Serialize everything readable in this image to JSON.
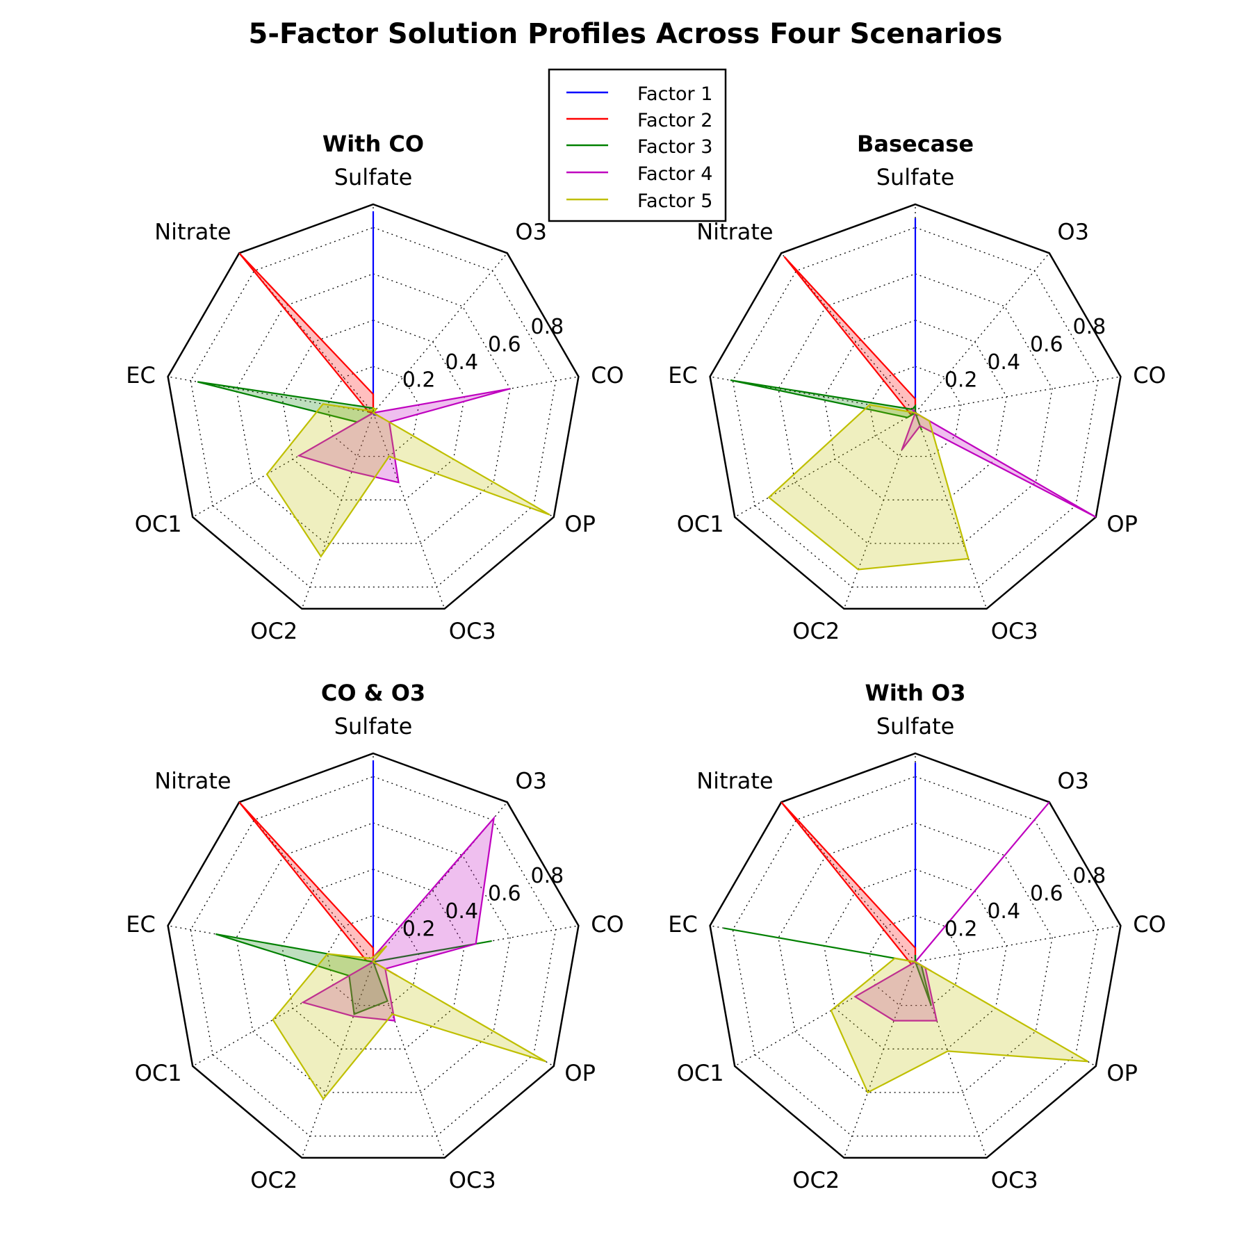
{
  "figure_title": "5-Factor Solution Profiles Across Four Scenarios",
  "legend": [
    {
      "name": "Factor 1",
      "color": "#0000ff"
    },
    {
      "name": "Factor 2",
      "color": "#ff0000"
    },
    {
      "name": "Factor 3",
      "color": "#008000"
    },
    {
      "name": "Factor 4",
      "color": "#bf00bf"
    },
    {
      "name": "Factor 5",
      "color": "#bfbf00"
    }
  ],
  "legend_placement": "top-center",
  "chart_data": [
    {
      "type": "radar",
      "title": "With CO",
      "categories": [
        "Sulfate",
        "O3",
        "CO",
        "OP",
        "OC3",
        "OC2",
        "OC1",
        "EC",
        "Nitrate"
      ],
      "radial_ticks": [
        "0.2",
        "0.4",
        "0.6",
        "0.8"
      ],
      "rlim": [
        0,
        0.9
      ],
      "grid": true,
      "series": [
        {
          "name": "Factor 1",
          "values": [
            0.87,
            0.0,
            0.0,
            0.02,
            0.01,
            0.0,
            0.01,
            0.01,
            0.0
          ]
        },
        {
          "name": "Factor 2",
          "values": [
            0.08,
            0.0,
            0.0,
            0.05,
            0.0,
            0.0,
            0.0,
            0.02,
            0.9
          ]
        },
        {
          "name": "Factor 3",
          "values": [
            0.02,
            0.0,
            0.0,
            0.02,
            0.0,
            0.0,
            0.08,
            0.77,
            0.03
          ]
        },
        {
          "name": "Factor 4",
          "values": [
            0.0,
            0.0,
            0.6,
            0.08,
            0.32,
            0.27,
            0.37,
            0.0,
            0.0
          ]
        },
        {
          "name": "Factor 5",
          "values": [
            0.02,
            0.02,
            0.0,
            0.88,
            0.2,
            0.66,
            0.53,
            0.22,
            0.01
          ]
        }
      ]
    },
    {
      "type": "radar",
      "title": "Basecase",
      "categories": [
        "Sulfate",
        "O3",
        "CO",
        "OP",
        "OC3",
        "OC2",
        "OC1",
        "EC",
        "Nitrate"
      ],
      "radial_ticks": [
        "0.2",
        "0.4",
        "0.6",
        "0.8"
      ],
      "rlim": [
        0,
        0.9
      ],
      "grid": true,
      "series": [
        {
          "name": "Factor 1",
          "values": [
            0.84,
            0.0,
            0.0,
            0.02,
            0.01,
            0.0,
            0.02,
            0.01,
            0.0
          ]
        },
        {
          "name": "Factor 2",
          "values": [
            0.06,
            0.0,
            0.0,
            0.0,
            0.0,
            0.0,
            0.02,
            0.03,
            0.88
          ]
        },
        {
          "name": "Factor 3",
          "values": [
            0.03,
            0.0,
            0.0,
            0.0,
            0.08,
            0.0,
            0.04,
            0.81,
            0.02
          ]
        },
        {
          "name": "Factor 4",
          "values": [
            0.0,
            0.0,
            0.0,
            0.9,
            0.06,
            0.17,
            0.0,
            0.0,
            0.02
          ]
        },
        {
          "name": "Factor 5",
          "values": [
            0.0,
            0.0,
            0.0,
            0.07,
            0.67,
            0.72,
            0.73,
            0.2,
            0.0
          ]
        }
      ]
    },
    {
      "type": "radar",
      "title": "CO & O3",
      "categories": [
        "Sulfate",
        "O3",
        "CO",
        "OP",
        "OC3",
        "OC2",
        "OC1",
        "EC",
        "Nitrate"
      ],
      "radial_ticks": [
        "0.2",
        "0.4",
        "0.6",
        "0.8"
      ],
      "rlim": [
        0,
        0.9
      ],
      "grid": true,
      "series": [
        {
          "name": "Factor 1",
          "values": [
            0.87,
            0.0,
            0.0,
            0.02,
            0.01,
            0.0,
            0.01,
            0.01,
            0.0
          ]
        },
        {
          "name": "Factor 2",
          "values": [
            0.06,
            0.0,
            0.0,
            0.12,
            0.0,
            0.0,
            0.0,
            0.03,
            0.9
          ]
        },
        {
          "name": "Factor 3",
          "values": [
            0.0,
            0.0,
            0.52,
            0.0,
            0.18,
            0.24,
            0.12,
            0.69,
            0.0
          ]
        },
        {
          "name": "Factor 4",
          "values": [
            0.02,
            0.81,
            0.45,
            0.06,
            0.27,
            0.25,
            0.35,
            0.0,
            0.0
          ]
        },
        {
          "name": "Factor 5",
          "values": [
            0.02,
            0.09,
            0.0,
            0.86,
            0.24,
            0.63,
            0.5,
            0.2,
            0.02
          ]
        }
      ]
    },
    {
      "type": "radar",
      "title": "With O3",
      "categories": [
        "Sulfate",
        "O3",
        "CO",
        "OP",
        "OC3",
        "OC2",
        "OC1",
        "EC",
        "Nitrate"
      ],
      "radial_ticks": [
        "0.2",
        "0.4",
        "0.6",
        "0.8"
      ],
      "rlim": [
        0,
        0.9
      ],
      "grid": true,
      "series": [
        {
          "name": "Factor 1",
          "values": [
            0.86,
            0.0,
            0.0,
            0.02,
            0.01,
            0.0,
            0.01,
            0.01,
            0.0
          ]
        },
        {
          "name": "Factor 2",
          "values": [
            0.06,
            0.0,
            0.0,
            0.08,
            0.0,
            0.0,
            0.02,
            0.03,
            0.9
          ]
        },
        {
          "name": "Factor 3",
          "values": [
            0.03,
            0.0,
            0.0,
            0.03,
            0.2,
            0.0,
            0.0,
            0.84,
            0.0
          ]
        },
        {
          "name": "Factor 4",
          "values": [
            0.0,
            0.9,
            0.0,
            0.05,
            0.27,
            0.27,
            0.3,
            0.0,
            0.0
          ]
        },
        {
          "name": "Factor 5",
          "values": [
            0.0,
            0.0,
            0.0,
            0.86,
            0.41,
            0.6,
            0.42,
            0.09,
            0.0
          ]
        }
      ]
    }
  ]
}
